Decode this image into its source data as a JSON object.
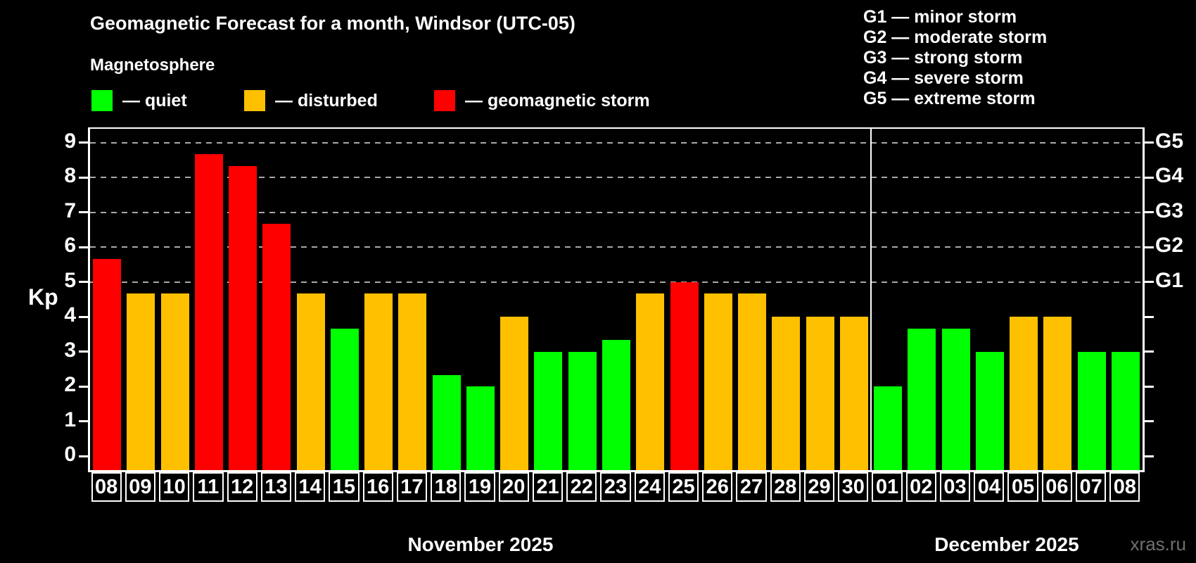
{
  "title": "Geomagnetic Forecast for a month, Windsor (UTC-05)",
  "subtitle": "Magnetosphere",
  "legend": {
    "items": [
      {
        "key": "quiet",
        "label": "— quiet",
        "color": "#00ff00"
      },
      {
        "key": "disturbed",
        "label": "— disturbed",
        "color": "#ffc000"
      },
      {
        "key": "storm",
        "label": "— geomagnetic storm",
        "color": "#ff0000"
      }
    ]
  },
  "g_scale_legend": [
    "G1 — minor storm",
    "G2 — moderate storm",
    "G3 — strong storm",
    "G4 — severe storm",
    "G5 — extreme storm"
  ],
  "watermark": "xras.ru",
  "chart_data": {
    "type": "bar",
    "ylabel": "Kp",
    "ylim": [
      -0.4,
      9.4
    ],
    "yticks": [
      0,
      1,
      2,
      3,
      4,
      5,
      6,
      7,
      8,
      9
    ],
    "gridlines": [
      5,
      6,
      7,
      8,
      9
    ],
    "grid_on": true,
    "right_axis": [
      {
        "kp": 5,
        "label": "G1"
      },
      {
        "kp": 6,
        "label": "G2"
      },
      {
        "kp": 7,
        "label": "G3"
      },
      {
        "kp": 8,
        "label": "G4"
      },
      {
        "kp": 9,
        "label": "G5"
      }
    ],
    "status_colors": {
      "quiet": "#00ff00",
      "disturbed": "#ffc000",
      "storm": "#ff0000"
    },
    "months": [
      {
        "label": "November 2025",
        "days": [
          {
            "day": "08",
            "kp": 5.67,
            "status": "storm"
          },
          {
            "day": "09",
            "kp": 4.67,
            "status": "disturbed"
          },
          {
            "day": "10",
            "kp": 4.67,
            "status": "disturbed"
          },
          {
            "day": "11",
            "kp": 8.67,
            "status": "storm"
          },
          {
            "day": "12",
            "kp": 8.33,
            "status": "storm"
          },
          {
            "day": "13",
            "kp": 6.67,
            "status": "storm"
          },
          {
            "day": "14",
            "kp": 4.67,
            "status": "disturbed"
          },
          {
            "day": "15",
            "kp": 3.67,
            "status": "quiet"
          },
          {
            "day": "16",
            "kp": 4.67,
            "status": "disturbed"
          },
          {
            "day": "17",
            "kp": 4.67,
            "status": "disturbed"
          },
          {
            "day": "18",
            "kp": 2.33,
            "status": "quiet"
          },
          {
            "day": "19",
            "kp": 2.0,
            "status": "quiet"
          },
          {
            "day": "20",
            "kp": 4.0,
            "status": "disturbed"
          },
          {
            "day": "21",
            "kp": 3.0,
            "status": "quiet"
          },
          {
            "day": "22",
            "kp": 3.0,
            "status": "quiet"
          },
          {
            "day": "23",
            "kp": 3.33,
            "status": "quiet"
          },
          {
            "day": "24",
            "kp": 4.67,
            "status": "disturbed"
          },
          {
            "day": "25",
            "kp": 5.0,
            "status": "storm"
          },
          {
            "day": "26",
            "kp": 4.67,
            "status": "disturbed"
          },
          {
            "day": "27",
            "kp": 4.67,
            "status": "disturbed"
          },
          {
            "day": "28",
            "kp": 4.0,
            "status": "disturbed"
          },
          {
            "day": "29",
            "kp": 4.0,
            "status": "disturbed"
          },
          {
            "day": "30",
            "kp": 4.0,
            "status": "disturbed"
          }
        ]
      },
      {
        "label": "December 2025",
        "days": [
          {
            "day": "01",
            "kp": 2.0,
            "status": "quiet"
          },
          {
            "day": "02",
            "kp": 3.67,
            "status": "quiet"
          },
          {
            "day": "03",
            "kp": 3.67,
            "status": "quiet"
          },
          {
            "day": "04",
            "kp": 3.0,
            "status": "quiet"
          },
          {
            "day": "05",
            "kp": 4.0,
            "status": "disturbed"
          },
          {
            "day": "06",
            "kp": 4.0,
            "status": "disturbed"
          },
          {
            "day": "07",
            "kp": 3.0,
            "status": "quiet"
          },
          {
            "day": "08",
            "kp": 3.0,
            "status": "quiet"
          }
        ]
      }
    ]
  }
}
